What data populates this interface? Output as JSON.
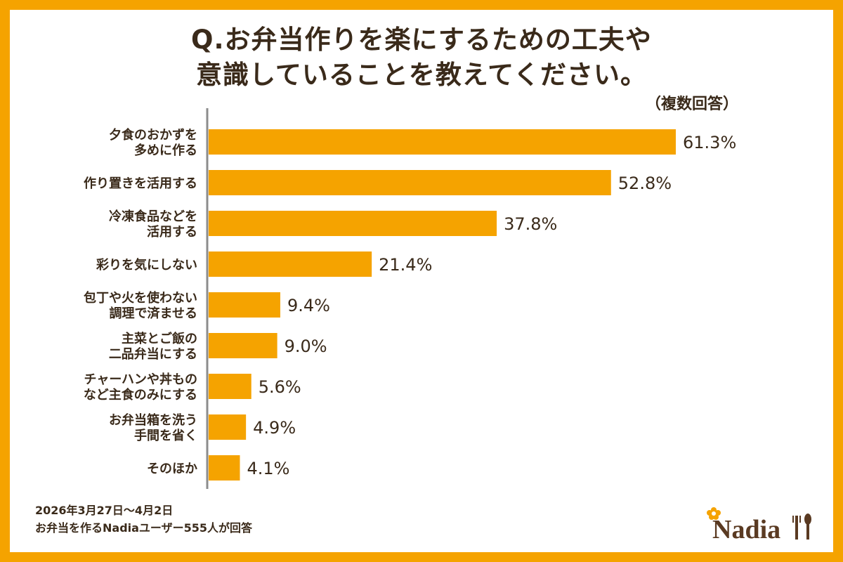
{
  "title_lines": [
    "Q.お弁当作りを楽にするための工夫や",
    "意識していることを教えてください。"
  ],
  "note": "（複数回答）",
  "footer": {
    "date": "2026年3月27日～4月2日",
    "respondents": "お弁当を作るNadiaユーザー555人が回答"
  },
  "brand": {
    "name": "Nadia"
  },
  "colors": {
    "bar": "#F5A300",
    "frame": "#F5A300",
    "axis": "#8c8c8c",
    "text": "#3a2a1a"
  },
  "chart_data": {
    "type": "bar",
    "orientation": "horizontal",
    "categories": [
      [
        "夕食のおかずを",
        "多めに作る"
      ],
      [
        "作り置きを活用する"
      ],
      [
        "冷凍食品などを",
        "活用する"
      ],
      [
        "彩りを気にしない"
      ],
      [
        "包丁や火を使わない",
        "調理で済ませる"
      ],
      [
        "主菜とご飯の",
        "二品弁当にする"
      ],
      [
        "チャーハンや丼もの",
        "など主食のみにする"
      ],
      [
        "お弁当箱を洗う",
        "手間を省く"
      ],
      [
        "そのほか"
      ]
    ],
    "values": [
      61.3,
      52.8,
      37.8,
      21.4,
      9.4,
      9.0,
      5.6,
      4.9,
      4.1
    ],
    "value_labels": [
      "61.3%",
      "52.8%",
      "37.8%",
      "21.4%",
      "9.4%",
      "9.0%",
      "5.6%",
      "4.9%",
      "4.1%"
    ],
    "unit": "%"
  }
}
